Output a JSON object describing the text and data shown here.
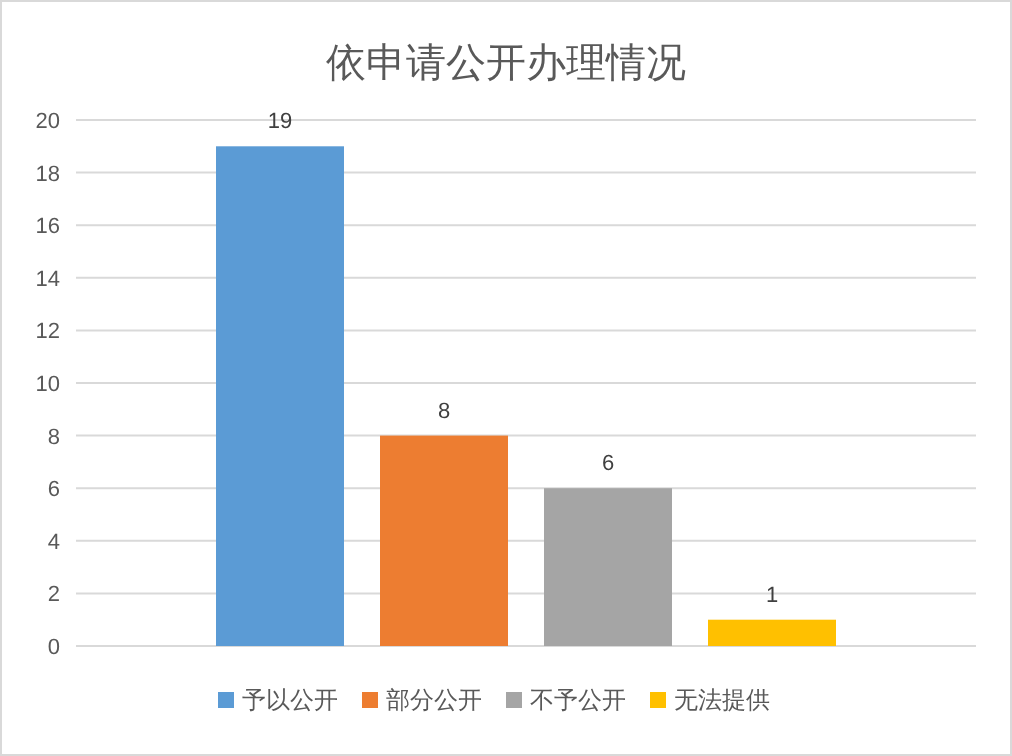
{
  "chart_data": {
    "type": "bar",
    "title": "依申请公开办理情况",
    "categories": [
      null
    ],
    "series": [
      {
        "name": "予以公开",
        "color": "#5b9bd5",
        "values": [
          19
        ]
      },
      {
        "name": "部分公开",
        "color": "#ed7d31",
        "values": [
          8
        ]
      },
      {
        "name": "不予公开",
        "color": "#a5a5a5",
        "values": [
          6
        ]
      },
      {
        "name": "无法提供",
        "color": "#ffc000",
        "values": [
          1
        ]
      }
    ],
    "ylim": [
      0,
      20
    ],
    "yticks": [
      0,
      2,
      4,
      6,
      8,
      10,
      12,
      14,
      16,
      18,
      20
    ],
    "grid": "y",
    "legend": "bottom",
    "data_labels": true
  }
}
